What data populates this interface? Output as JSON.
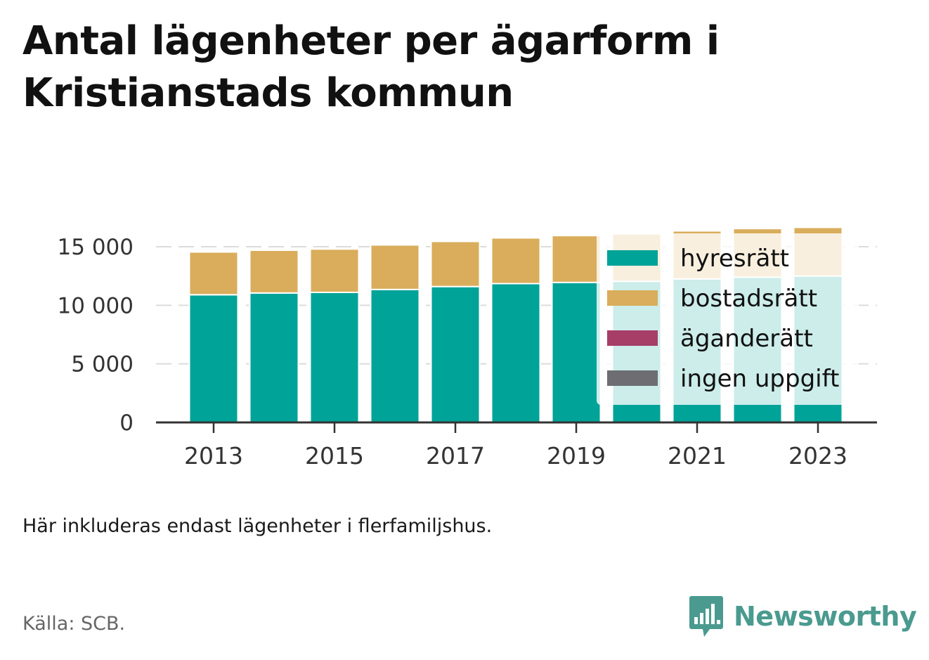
{
  "title": "Antal lägenheter per ägarform i Kristianstads kommun",
  "note": "Här inkluderas endast lägenheter i flerfamiljshus.",
  "source": "Källa: SCB.",
  "brand": {
    "name": "Newsworthy",
    "icon": "bar-chart-speech-bubble-icon"
  },
  "colors": {
    "hyresratt": "#00a398",
    "bostadsratt": "#d9ad5b",
    "aganderatt": "#a63e68",
    "ingen_uppgift": "#6d6d72",
    "brand": "#4a9a8f"
  },
  "chart_data": {
    "type": "bar",
    "stacked": true,
    "x": [
      2013,
      2014,
      2015,
      2016,
      2017,
      2018,
      2019,
      2020,
      2021,
      2022,
      2023
    ],
    "x_tick_labels": [
      "2013",
      "2015",
      "2017",
      "2019",
      "2021",
      "2023"
    ],
    "series": [
      {
        "name": "hyresrätt",
        "color": "#00a398",
        "values": [
          10900,
          11050,
          11100,
          11350,
          11600,
          11850,
          11950,
          12050,
          12250,
          12400,
          12500
        ]
      },
      {
        "name": "bostadsrätt",
        "color": "#d9ad5b",
        "values": [
          3650,
          3650,
          3700,
          3800,
          3850,
          3900,
          4000,
          4050,
          4100,
          4150,
          4150
        ]
      },
      {
        "name": "äganderätt",
        "color": "#a63e68",
        "values": [
          0,
          0,
          0,
          0,
          0,
          0,
          0,
          0,
          0,
          0,
          0
        ]
      },
      {
        "name": "ingen uppgift",
        "color": "#6d6d72",
        "values": [
          0,
          0,
          0,
          0,
          0,
          0,
          0,
          0,
          0,
          0,
          0
        ]
      }
    ],
    "y_ticks": [
      0,
      5000,
      10000,
      15000
    ],
    "y_tick_labels": [
      "0",
      "5 000",
      "10 000",
      "15 000"
    ],
    "ylim": [
      0,
      16500
    ],
    "grid": true,
    "legend_position": "right"
  }
}
